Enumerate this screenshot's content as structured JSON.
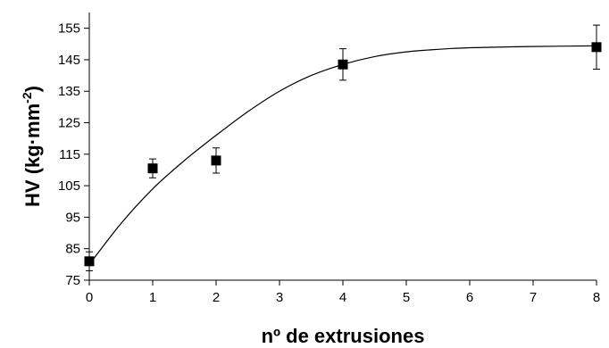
{
  "chart_data": {
    "type": "scatter",
    "xlabel": "nº de extrusiones",
    "ylabel": {
      "prefix": "HV (kg·mm",
      "sup": "-2",
      "suffix": ")"
    },
    "xlim": [
      0,
      8
    ],
    "ylim": [
      75,
      160
    ],
    "x_ticks": [
      "0",
      "1",
      "2",
      "3",
      "4",
      "5",
      "6",
      "7",
      "8"
    ],
    "y_ticks": [
      "75",
      "85",
      "95",
      "105",
      "115",
      "125",
      "135",
      "145",
      "155"
    ],
    "grid": false,
    "legend": "none",
    "series": [
      {
        "marker": "square",
        "color": "#000000",
        "points": [
          {
            "x": 0,
            "y": 81,
            "err": 3
          },
          {
            "x": 1,
            "y": 110.5,
            "err": 3
          },
          {
            "x": 2,
            "y": 113,
            "err": 4
          },
          {
            "x": 4,
            "y": 143.5,
            "err": 5
          },
          {
            "x": 8,
            "y": 149,
            "err": 7
          }
        ]
      }
    ],
    "fit_curve": {
      "type": "smooth",
      "points": [
        [
          0,
          80
        ],
        [
          0.5,
          93
        ],
        [
          1,
          104
        ],
        [
          1.5,
          113
        ],
        [
          2,
          121
        ],
        [
          2.5,
          128.5
        ],
        [
          3,
          135
        ],
        [
          3.5,
          140
        ],
        [
          4,
          143.5
        ],
        [
          4.5,
          146
        ],
        [
          5,
          147.5
        ],
        [
          5.5,
          148.3
        ],
        [
          6,
          148.8
        ],
        [
          7,
          149.2
        ],
        [
          8,
          149.4
        ]
      ]
    }
  }
}
